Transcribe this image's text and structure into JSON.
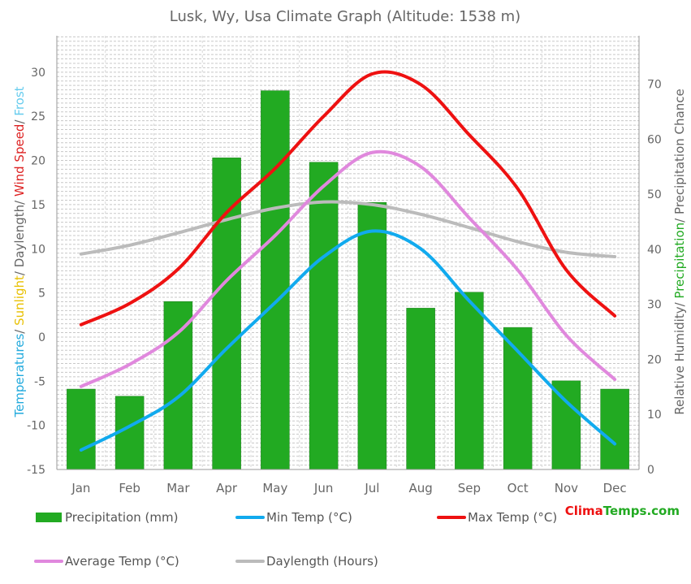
{
  "chart_data": {
    "type": "bar",
    "title": "Lusk, Wy, Usa Climate Graph (Altitude: 1538 m)",
    "categories": [
      "Jan",
      "Feb",
      "Mar",
      "Apr",
      "May",
      "Jun",
      "Jul",
      "Aug",
      "Sep",
      "Oct",
      "Nov",
      "Dec"
    ],
    "left_axis": {
      "ylim": [
        -15,
        35
      ],
      "ticks": [
        -15,
        -10,
        -5,
        0,
        5,
        10,
        15,
        20,
        25,
        30
      ],
      "label_parts": [
        {
          "text": "Temperatures",
          "color": "#22aadd"
        },
        {
          "text": "/ ",
          "color": "#666666"
        },
        {
          "text": "Sunlight",
          "color": "#e8c000"
        },
        {
          "text": "/ Daylength/ ",
          "color": "#666666"
        },
        {
          "text": "Wind Speed",
          "color": "#dd2222"
        },
        {
          "text": "/ ",
          "color": "#666666"
        },
        {
          "text": "Frost",
          "color": "#66ccee"
        }
      ]
    },
    "right_axis": {
      "ylim": [
        0,
        70
      ],
      "ticks": [
        0,
        10,
        20,
        30,
        40,
        50,
        60,
        70
      ],
      "label_parts": [
        {
          "text": "Relative Humidity/ ",
          "color": "#666666"
        },
        {
          "text": "Precipitation",
          "color": "#22aa22"
        },
        {
          "text": "/ Precipitation Chance",
          "color": "#666666"
        }
      ]
    },
    "series": [
      {
        "name": "Precipitation (mm)",
        "kind": "bar",
        "axis": "right",
        "color": "#22aa22",
        "values": [
          14.6,
          13.3,
          30.5,
          56.6,
          68.8,
          55.8,
          48.5,
          29.3,
          32.2,
          25.8,
          16.1,
          14.6
        ]
      },
      {
        "name": "Min Temp (°C)",
        "kind": "line",
        "axis": "left",
        "color": "#11aaee",
        "values": [
          -12.8,
          -10.1,
          -6.8,
          -1.3,
          3.9,
          9.1,
          12.0,
          10.0,
          4.1,
          -1.6,
          -7.3,
          -12.1
        ]
      },
      {
        "name": "Max Temp (°C)",
        "kind": "line",
        "axis": "left",
        "color": "#ee1111",
        "values": [
          1.4,
          3.8,
          7.7,
          14.1,
          19.1,
          25.0,
          29.8,
          28.6,
          22.9,
          16.8,
          7.6,
          2.4
        ]
      },
      {
        "name": "Average Temp (°C)",
        "kind": "line",
        "axis": "left",
        "color": "#e088dd",
        "values": [
          -5.6,
          -3.1,
          0.5,
          6.4,
          11.5,
          17.1,
          20.9,
          19.3,
          13.5,
          7.6,
          0.2,
          -4.8
        ]
      },
      {
        "name": "Daylength (Hours)",
        "kind": "line",
        "axis": "left",
        "color": "#bbbbbb",
        "values": [
          9.4,
          10.4,
          11.8,
          13.3,
          14.6,
          15.3,
          15.0,
          13.9,
          12.4,
          10.8,
          9.6,
          9.1
        ]
      }
    ],
    "grid": true,
    "legend_position": "bottom"
  },
  "brand": {
    "part1": "Clima",
    "part2": "Temps",
    "part3": ".com",
    "color1": "#ee1111",
    "color2": "#22aa22"
  }
}
